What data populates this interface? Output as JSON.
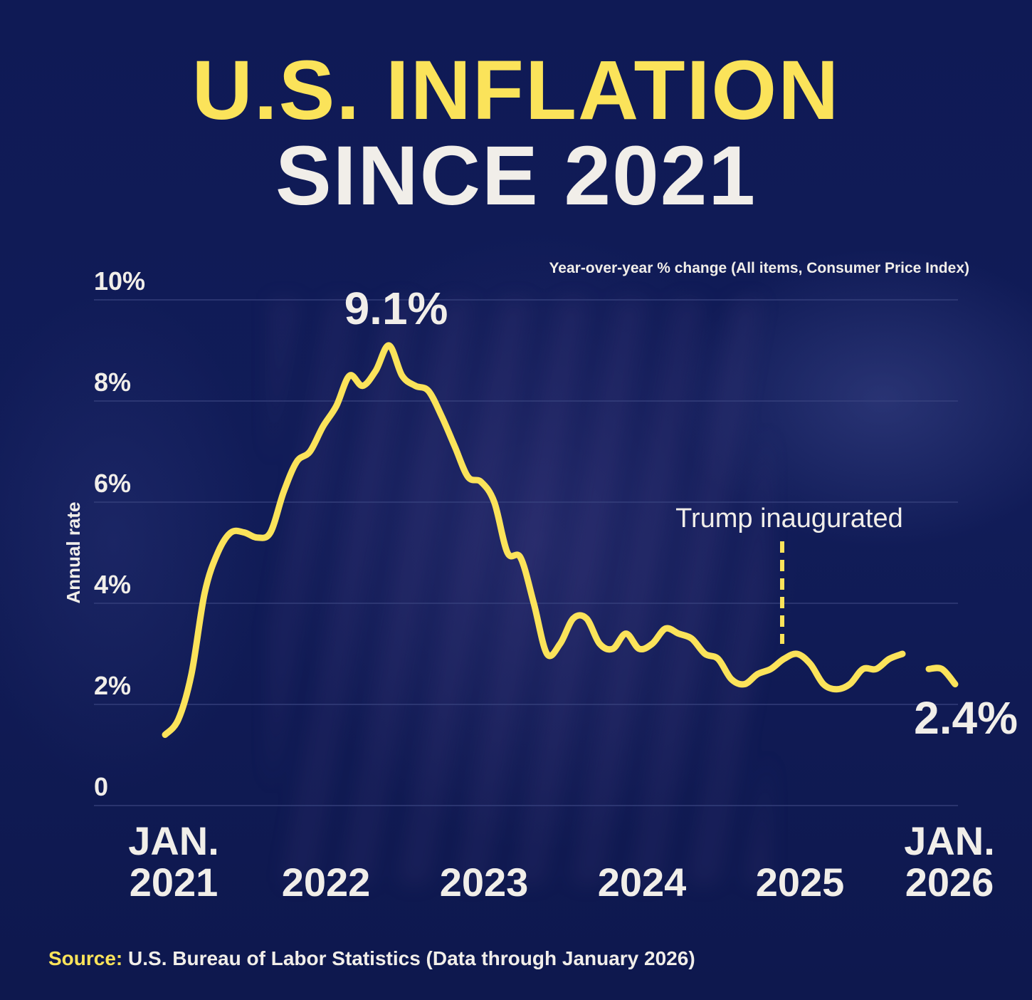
{
  "title": {
    "line1": "U.S. INFLATION",
    "line2": "SINCE 2021"
  },
  "colors": {
    "background": "#101a52",
    "accent": "#fbe35a",
    "text": "#f1eee9",
    "grid": "#3a4480"
  },
  "chart_data": {
    "type": "line",
    "subtitle": "Year-over-year % change (All items, Consumer Price Index)",
    "ylabel": "Annual rate",
    "ylim": [
      0,
      10
    ],
    "y_ticks": [
      {
        "value": 0,
        "label": "0"
      },
      {
        "value": 2,
        "label": "2%"
      },
      {
        "value": 4,
        "label": "4%"
      },
      {
        "value": 6,
        "label": "6%"
      },
      {
        "value": 8,
        "label": "8%"
      },
      {
        "value": 10,
        "label": "10%"
      }
    ],
    "x_ticks": [
      {
        "index": 0,
        "line1": "JAN.",
        "line2": "2021"
      },
      {
        "index": 12,
        "line1": "",
        "line2": "2022"
      },
      {
        "index": 24,
        "line1": "",
        "line2": "2023"
      },
      {
        "index": 36,
        "line1": "",
        "line2": "2024"
      },
      {
        "index": 48,
        "line1": "",
        "line2": "2025"
      },
      {
        "index": 60,
        "line1": "JAN.",
        "line2": "2026"
      }
    ],
    "series": [
      {
        "name": "CPI year-over-year % change",
        "start": "2021-01",
        "values": [
          1.4,
          1.7,
          2.6,
          4.2,
          5.0,
          5.4,
          5.4,
          5.3,
          5.4,
          6.2,
          6.8,
          7.0,
          7.5,
          7.9,
          8.5,
          8.3,
          8.6,
          9.1,
          8.5,
          8.3,
          8.2,
          7.7,
          7.1,
          6.5,
          6.4,
          6.0,
          5.0,
          4.9,
          4.0,
          3.0,
          3.2,
          3.7,
          3.7,
          3.2,
          3.1,
          3.4,
          3.1,
          3.2,
          3.5,
          3.4,
          3.3,
          3.0,
          2.9,
          2.5,
          2.4,
          2.6,
          2.7,
          2.9,
          3.0,
          2.8,
          2.4,
          2.3,
          2.4,
          2.7,
          2.7,
          2.9,
          3.0,
          null,
          2.7,
          2.7,
          2.4
        ]
      }
    ],
    "annotations": {
      "peak": {
        "index": 17,
        "label": "9.1%"
      },
      "latest": {
        "index": 60,
        "label": "2.4%"
      },
      "event": {
        "index": 48,
        "label": "Trump inaugurated"
      }
    }
  },
  "source": {
    "label": "Source:",
    "text": "U.S. Bureau of Labor Statistics (Data through January 2026)"
  }
}
